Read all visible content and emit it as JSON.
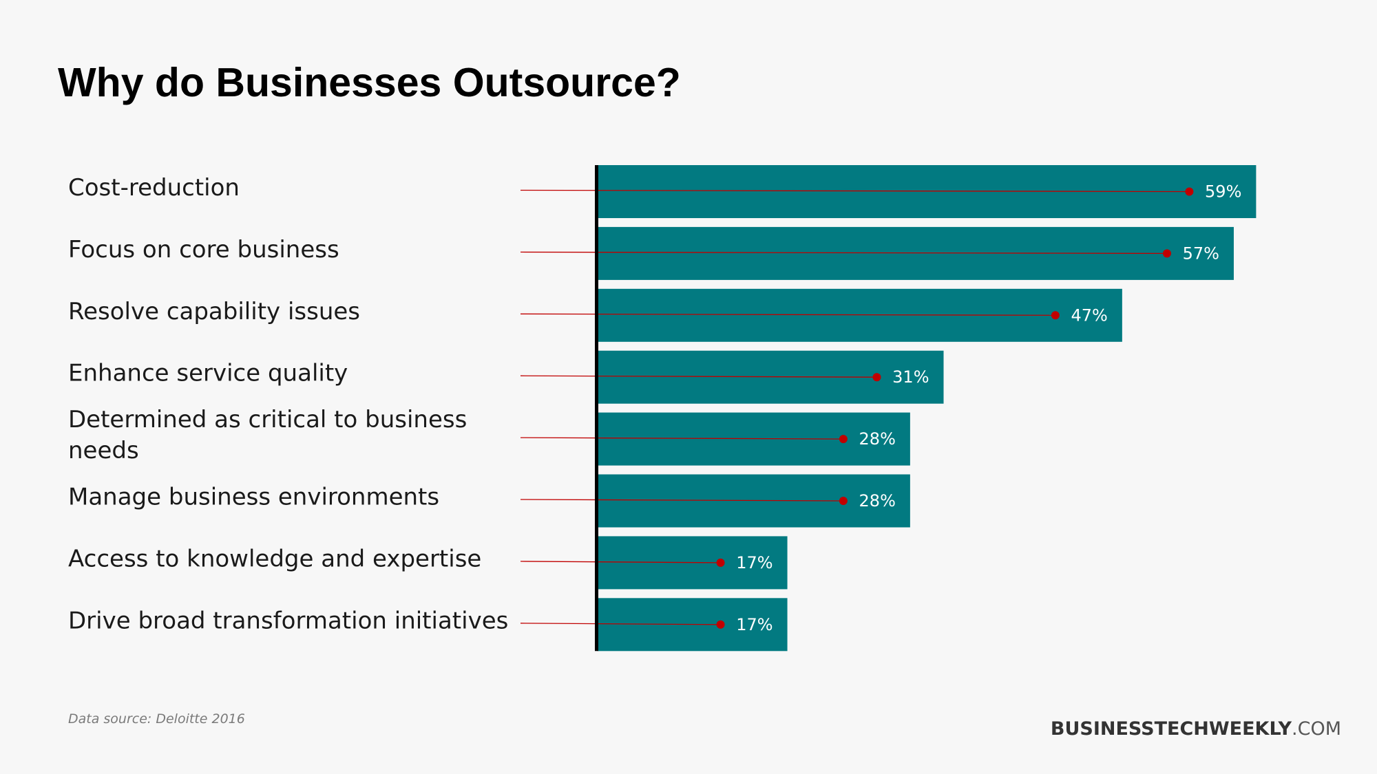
{
  "title": "Why do Businesses Outsource?",
  "source": "Data source: Deloitte 2016",
  "brand": {
    "bold": "BUSINESSTECHWEEKLY",
    "light": ".COM"
  },
  "colors": {
    "bar": "#027a81",
    "marker": "#c00000",
    "axis": "#000000",
    "text": "#1a1a1a"
  },
  "chart_data": {
    "type": "bar",
    "orientation": "horizontal",
    "categories": [
      [
        "Cost-reduction"
      ],
      [
        "Focus on core business"
      ],
      [
        "Resolve capability issues"
      ],
      [
        "Enhance service quality"
      ],
      [
        "Determined as critical to business",
        "needs"
      ],
      [
        "Manage business environments"
      ],
      [
        "Access to knowledge and expertise"
      ],
      [
        "Drive broad transformation initiatives"
      ]
    ],
    "values": [
      59,
      57,
      47,
      31,
      28,
      28,
      17,
      17
    ],
    "value_labels": [
      "59%",
      "57%",
      "47%",
      "31%",
      "28%",
      "28%",
      "17%",
      "17%"
    ],
    "unit": "%",
    "grid": false,
    "legend": "none"
  }
}
